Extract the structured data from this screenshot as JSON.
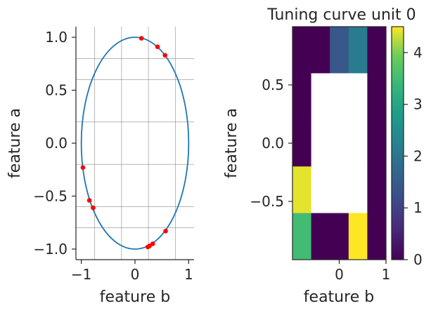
{
  "chart_data": [
    {
      "type": "scatter",
      "title": "",
      "xlabel": "feature b",
      "ylabel": "feature a",
      "xlim": [
        -1.1,
        1.1
      ],
      "ylim": [
        -1.1,
        1.1
      ],
      "xticks": [
        -1,
        0,
        1
      ],
      "xtick_labels": [
        "−1",
        "0",
        "1"
      ],
      "yticks": [
        -1.0,
        -0.5,
        0.0,
        0.5,
        1.0
      ],
      "ytick_labels": [
        "−1.0",
        "−0.5",
        "0.0",
        "0.5",
        "1.0"
      ],
      "grid": true,
      "circle": {
        "center": [
          0,
          0
        ],
        "radius": 1,
        "color": "#1f77b4"
      },
      "points_color": "#ff0000",
      "points": [
        {
          "x": 0.12,
          "y": 0.99
        },
        {
          "x": 0.42,
          "y": 0.91
        },
        {
          "x": 0.56,
          "y": 0.83
        },
        {
          "x": -0.97,
          "y": -0.23
        },
        {
          "x": -0.85,
          "y": -0.54
        },
        {
          "x": -0.78,
          "y": -0.61
        },
        {
          "x": 0.57,
          "y": -0.83
        },
        {
          "x": 0.33,
          "y": -0.95
        },
        {
          "x": 0.27,
          "y": -0.97
        },
        {
          "x": 0.24,
          "y": -0.98
        }
      ]
    },
    {
      "type": "heatmap",
      "title": "Tuning curve unit 0",
      "xlabel": "feature b",
      "ylabel": "feature a",
      "x_edges": [
        -1,
        -0.6,
        -0.2,
        0.2,
        0.6,
        1.0
      ],
      "y_edges": [
        -1,
        -0.6,
        -0.2,
        0.2,
        0.6,
        1.0
      ],
      "xticks": [
        0,
        1
      ],
      "xtick_labels": [
        "0",
        "1"
      ],
      "yticks": [
        -0.5,
        0.0,
        0.5
      ],
      "ytick_labels": [
        "−0.5",
        "0.0",
        "0.5"
      ],
      "values": [
        [
          0.0,
          0.0,
          1.4,
          2.1,
          0.0
        ],
        [
          0.0,
          null,
          null,
          null,
          0.0
        ],
        [
          0.0,
          null,
          null,
          null,
          0.0
        ],
        [
          4.4,
          null,
          null,
          null,
          0.0
        ],
        [
          3.5,
          0.0,
          0.0,
          4.5,
          0.0
        ]
      ],
      "colormap": "viridis",
      "colorbar": {
        "min": 0,
        "max": 4.5,
        "ticks": [
          0,
          1,
          2,
          3,
          4
        ],
        "tick_labels": [
          "0",
          "1",
          "2",
          "3",
          "4"
        ]
      }
    }
  ]
}
